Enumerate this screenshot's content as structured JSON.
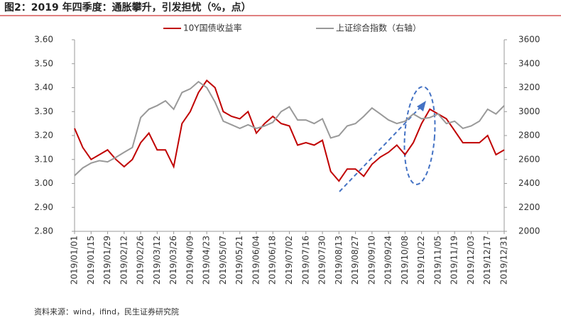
{
  "chart_data": {
    "type": "line",
    "title": "图2：2019 年四季度：通胀攀升，引发担忧（%，点）",
    "source": "资料来源：wind，ifind，民生证券研究院",
    "categories": [
      "2019/01/01",
      null,
      "2019/01/15",
      null,
      "2019/01/29",
      null,
      "2019/02/12",
      null,
      "2019/02/26",
      null,
      "2019/03/12",
      null,
      "2019/03/26",
      null,
      "2019/04/09",
      null,
      "2019/04/23",
      null,
      "2019/05/07",
      null,
      "2019/05/21",
      null,
      "2019/06/04",
      null,
      "2019/06/18",
      null,
      "2019/07/02",
      null,
      "2019/07/16",
      null,
      "2019/07/30",
      null,
      "2019/08/13",
      null,
      "2019/08/27",
      null,
      "2019/09/10",
      null,
      "2019/09/24",
      null,
      "2019/10/08",
      null,
      "2019/10/22",
      null,
      "2019/11/05",
      null,
      "2019/11/19",
      null,
      "2019/12/03",
      null,
      "2019/12/17",
      null,
      "2019/12/31"
    ],
    "series": [
      {
        "name": "10Y国债收益率",
        "color": "#c00000",
        "values": [
          3.23,
          3.15,
          3.1,
          3.12,
          3.14,
          3.1,
          3.07,
          3.1,
          3.17,
          3.21,
          3.14,
          3.14,
          3.07,
          3.25,
          3.3,
          3.38,
          3.43,
          3.4,
          3.3,
          3.28,
          3.27,
          3.3,
          3.21,
          3.25,
          3.28,
          3.25,
          3.24,
          3.16,
          3.17,
          3.16,
          3.18,
          3.05,
          3.01,
          3.06,
          3.06,
          3.03,
          3.08,
          3.11,
          3.13,
          3.16,
          3.12,
          3.17,
          3.25,
          3.31,
          3.29,
          3.27,
          3.22,
          3.17,
          3.17,
          3.17,
          3.2,
          3.12,
          3.14
        ]
      },
      {
        "name": "上证综合指数（右轴）",
        "color": "#999999",
        "axis": "y2",
        "values": [
          2465,
          2530,
          2570,
          2590,
          2580,
          2618,
          2660,
          2700,
          2950,
          3020,
          3050,
          3090,
          3020,
          3160,
          3190,
          3250,
          3200,
          3080,
          2920,
          2890,
          2860,
          2890,
          2860,
          2880,
          2910,
          3000,
          3040,
          2930,
          2930,
          2900,
          2940,
          2780,
          2800,
          2880,
          2900,
          2960,
          3030,
          2980,
          2930,
          2900,
          2920,
          2980,
          2940,
          2950,
          2980,
          2900,
          2920,
          2860,
          2880,
          2920,
          3020,
          2980,
          3050
        ]
      }
    ],
    "ylim": [
      2.8,
      3.6
    ],
    "yticks": [
      {
        "value": 2.8,
        "label": "2.80"
      },
      {
        "value": 2.9,
        "label": "2.90"
      },
      {
        "value": 3.0,
        "label": "3.00"
      },
      {
        "value": 3.1,
        "label": "3.10"
      },
      {
        "value": 3.2,
        "label": "3.20"
      },
      {
        "value": 3.3,
        "label": "3.30"
      },
      {
        "value": 3.4,
        "label": "3.40"
      },
      {
        "value": 3.5,
        "label": "3.50"
      },
      {
        "value": 3.6,
        "label": "3.60"
      }
    ],
    "y2lim": [
      2000,
      3600
    ],
    "y2ticks": [
      2000,
      2200,
      2400,
      2600,
      2800,
      3000,
      3200,
      3400,
      3600
    ],
    "grid": false,
    "legend": "top"
  }
}
